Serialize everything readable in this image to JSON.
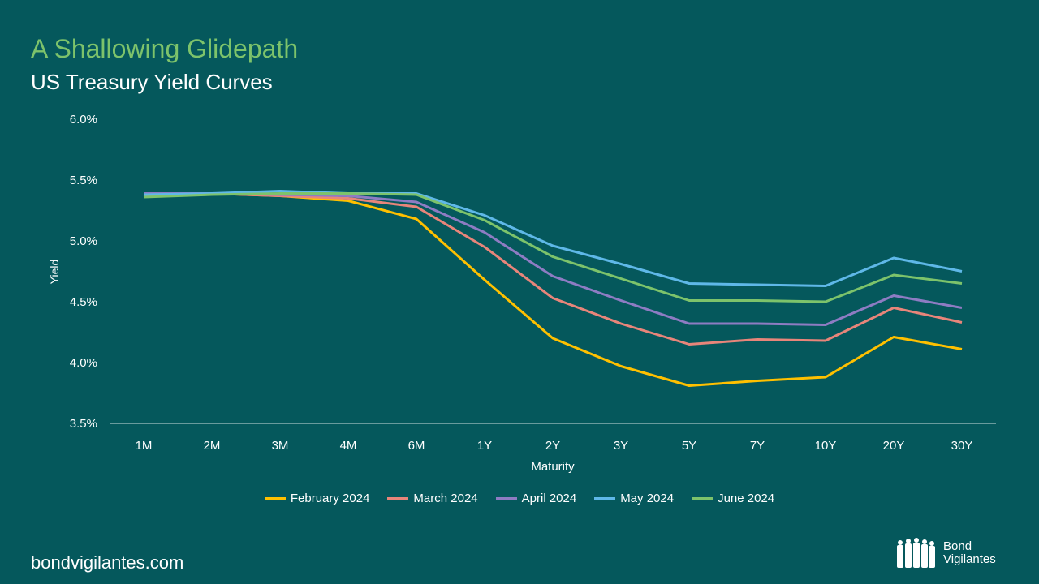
{
  "title": "A Shallowing Glidepath",
  "subtitle": "US Treasury Yield Curves",
  "footer": "bondvigilantes.com",
  "logo": {
    "line1": "Bond",
    "line2": "Vigilantes"
  },
  "chart_data": {
    "type": "line",
    "title": "US Treasury Yield Curves",
    "xlabel": "Maturity",
    "ylabel": "Yield",
    "ylim": [
      3.5,
      6.0
    ],
    "yticks": [
      "3.5%",
      "4.0%",
      "4.5%",
      "5.0%",
      "5.5%",
      "6.0%"
    ],
    "ytick_values": [
      3.5,
      4.0,
      4.5,
      5.0,
      5.5,
      6.0
    ],
    "grid": false,
    "legend": "bottom",
    "categories": [
      "1M",
      "2M",
      "3M",
      "4M",
      "6M",
      "1Y",
      "2Y",
      "3Y",
      "5Y",
      "7Y",
      "10Y",
      "20Y",
      "30Y"
    ],
    "series": [
      {
        "name": "February 2024",
        "color": "#ffc000",
        "values": [
          5.37,
          5.39,
          5.37,
          5.33,
          5.18,
          4.68,
          4.2,
          3.97,
          3.81,
          3.85,
          3.88,
          4.21,
          4.11
        ]
      },
      {
        "name": "March 2024",
        "color": "#e8857a",
        "values": [
          5.37,
          5.39,
          5.37,
          5.35,
          5.28,
          4.95,
          4.53,
          4.32,
          4.15,
          4.19,
          4.18,
          4.45,
          4.33
        ]
      },
      {
        "name": "April 2024",
        "color": "#8e7cc3",
        "values": [
          5.39,
          5.39,
          5.38,
          5.37,
          5.32,
          5.07,
          4.71,
          4.51,
          4.32,
          4.32,
          4.31,
          4.55,
          4.45
        ]
      },
      {
        "name": "May 2024",
        "color": "#5fb8e8",
        "values": [
          5.38,
          5.39,
          5.41,
          5.39,
          5.39,
          5.21,
          4.96,
          4.81,
          4.65,
          4.64,
          4.63,
          4.86,
          4.75
        ]
      },
      {
        "name": "June 2024",
        "color": "#7dc36b",
        "values": [
          5.36,
          5.38,
          5.39,
          5.39,
          5.38,
          5.17,
          4.87,
          4.69,
          4.51,
          4.51,
          4.5,
          4.72,
          4.65
        ]
      }
    ]
  }
}
